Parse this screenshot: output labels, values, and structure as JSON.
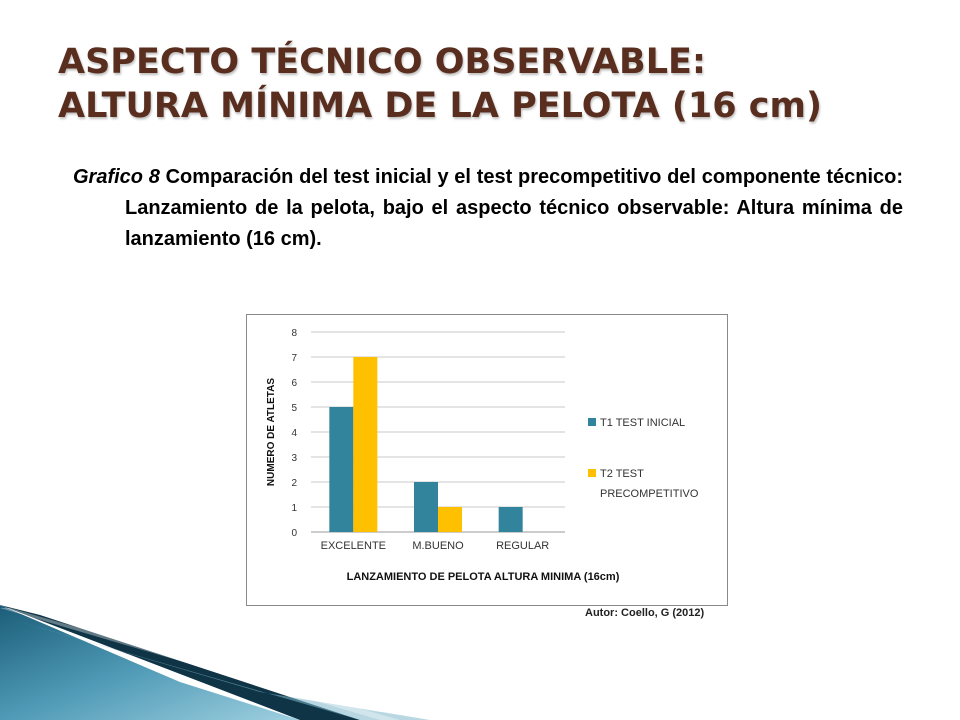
{
  "slide": {
    "title_line1": "ASPECTO TÉCNICO OBSERVABLE:",
    "title_line2": "ALTURA MÍNIMA DE LA PELOTA (16 cm)",
    "caption_label": "Grafico 8",
    "caption_text": " Comparación del test inicial  y el test precompetitivo del componente técnico: Lanzamiento de la pelota, bajo el aspecto técnico observable: Altura mínima de lanzamiento (16 cm).",
    "author": "Autor: Coello, G (2012)"
  },
  "colors": {
    "title": "#5a2e1e",
    "series1": "#31849b",
    "series2": "#ffc000",
    "grid": "#c8c8c8",
    "deco_dark": "#0e3446",
    "deco_light": "#6bb0c8"
  },
  "chart_data": {
    "type": "bar",
    "categories": [
      "EXCELENTE",
      "M.BUENO",
      "REGULAR"
    ],
    "series": [
      {
        "name": "T1  TEST INICIAL",
        "values": [
          5,
          2,
          1
        ]
      },
      {
        "name": "T2  TEST PRECOMPETITIVO",
        "values": [
          7,
          1,
          0
        ]
      }
    ],
    "xlabel": "LANZAMIENTO DE PELOTA ALTURA MINIMA (16cm)",
    "ylabel": "NUMERO DE ATLETAS",
    "ylim": [
      0,
      8
    ],
    "yticks": [
      0,
      1,
      2,
      3,
      4,
      5,
      6,
      7,
      8
    ],
    "grid": true,
    "legend": "right"
  }
}
